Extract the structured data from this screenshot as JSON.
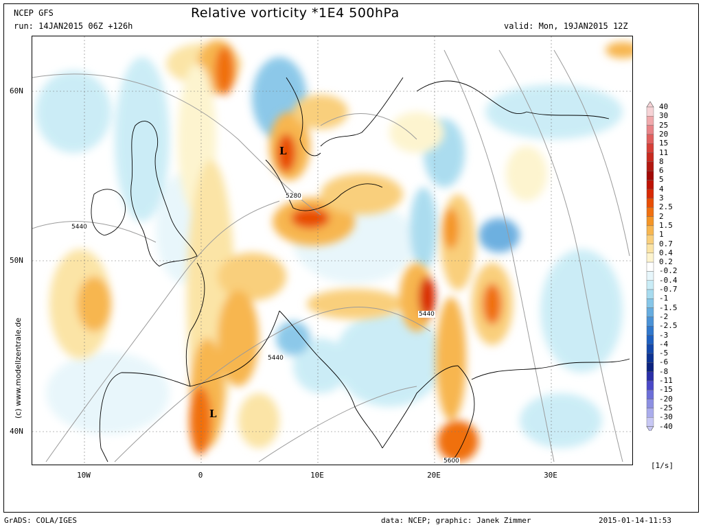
{
  "header": {
    "model": "NCEP GFS",
    "run": "run: 14JAN2015 06Z +126h",
    "title": "Relative vorticity *1E4 500hPa",
    "valid": "valid: Mon, 19JAN2015 12Z"
  },
  "map": {
    "lat_labels": [
      "60N",
      "50N",
      "40N"
    ],
    "lon_labels": [
      "10W",
      "0",
      "10E",
      "20E",
      "30E"
    ],
    "credit": "(c) www.modellzentrale.de",
    "contour_labels": [
      "5440",
      "5280",
      "5440",
      "5440",
      "5600"
    ],
    "low_marks": [
      "L",
      "L"
    ]
  },
  "legend": {
    "unit": "[1/s]",
    "levels": [
      "40",
      "30",
      "25",
      "20",
      "15",
      "11",
      "8",
      "6",
      "5",
      "4",
      "3",
      "2.5",
      "2",
      "1.5",
      "1",
      "0.7",
      "0.4",
      "0.2",
      "-0.2",
      "-0.4",
      "-0.7",
      "-1",
      "-1.5",
      "-2",
      "-2.5",
      "-3",
      "-4",
      "-5",
      "-6",
      "-8",
      "-11",
      "-15",
      "-20",
      "-25",
      "-30",
      "-40"
    ],
    "colors": [
      "#f6d3d6",
      "#f0a9ac",
      "#e88488",
      "#e0605f",
      "#d63f38",
      "#c82a20",
      "#b31810",
      "#a10a06",
      "#bd1306",
      "#d82a05",
      "#e84e05",
      "#f07010",
      "#f49526",
      "#f7b650",
      "#f9cf7c",
      "#fbe4a6",
      "#fdf4cf",
      "#ffffff",
      "#e7f6fb",
      "#c9ecf6",
      "#a7dbef",
      "#86c6e8",
      "#66acdf",
      "#4a92d6",
      "#3078cc",
      "#1e60c0",
      "#1448ab",
      "#0d3394",
      "#0c2380",
      "#2a2fa8",
      "#4a48c8",
      "#6c6ed8",
      "#8c8fe2",
      "#aaacec",
      "#c8c8f4"
    ]
  },
  "footer": {
    "left": "GrADS: COLA/IGES",
    "mid": "data: NCEP; graphic: Janek Zimmer",
    "right": "2015-01-14-11:53"
  }
}
